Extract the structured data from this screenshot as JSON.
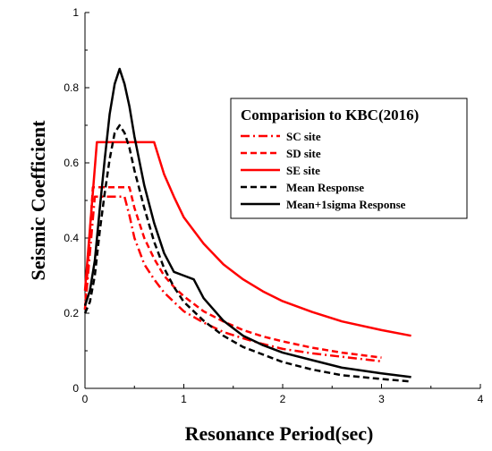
{
  "chart_data": {
    "type": "line",
    "title": "",
    "xlabel": "Resonance Period(sec)",
    "ylabel": "Seismic Coefficient",
    "xlim": [
      0,
      4
    ],
    "ylim": [
      0,
      1
    ],
    "x_ticks": [
      "0",
      "1",
      "2",
      "3",
      "4"
    ],
    "y_ticks": [
      "0",
      "0.2",
      "0.4",
      "0.6",
      "0.8",
      "1"
    ],
    "grid": false,
    "legend": {
      "title": "Comparision to KBC(2016)",
      "placement": "top-right"
    },
    "series": [
      {
        "name": "SC site",
        "color": "#ff0000",
        "style": "dashdot",
        "points": [
          [
            0.0,
            0.21
          ],
          [
            0.1,
            0.51
          ],
          [
            0.4,
            0.51
          ],
          [
            0.45,
            0.46
          ],
          [
            0.5,
            0.4
          ],
          [
            0.6,
            0.33
          ],
          [
            0.7,
            0.29
          ],
          [
            0.8,
            0.255
          ],
          [
            1.0,
            0.205
          ],
          [
            1.2,
            0.175
          ],
          [
            1.4,
            0.15
          ],
          [
            1.6,
            0.133
          ],
          [
            1.8,
            0.118
          ],
          [
            2.0,
            0.105
          ],
          [
            2.3,
            0.093
          ],
          [
            2.6,
            0.084
          ],
          [
            3.0,
            0.072
          ]
        ]
      },
      {
        "name": "SD site",
        "color": "#ff0000",
        "style": "dashed",
        "points": [
          [
            0.0,
            0.21
          ],
          [
            0.08,
            0.535
          ],
          [
            0.45,
            0.535
          ],
          [
            0.5,
            0.48
          ],
          [
            0.6,
            0.4
          ],
          [
            0.7,
            0.345
          ],
          [
            0.8,
            0.3
          ],
          [
            0.9,
            0.27
          ],
          [
            1.0,
            0.245
          ],
          [
            1.2,
            0.205
          ],
          [
            1.4,
            0.178
          ],
          [
            1.6,
            0.155
          ],
          [
            1.8,
            0.138
          ],
          [
            2.0,
            0.125
          ],
          [
            2.3,
            0.108
          ],
          [
            2.6,
            0.095
          ],
          [
            3.0,
            0.082
          ]
        ]
      },
      {
        "name": "SE site",
        "color": "#ff0000",
        "style": "solid",
        "points": [
          [
            0.0,
            0.26
          ],
          [
            0.12,
            0.655
          ],
          [
            0.7,
            0.655
          ],
          [
            0.8,
            0.57
          ],
          [
            0.9,
            0.51
          ],
          [
            1.0,
            0.455
          ],
          [
            1.2,
            0.385
          ],
          [
            1.4,
            0.33
          ],
          [
            1.6,
            0.29
          ],
          [
            1.8,
            0.258
          ],
          [
            2.0,
            0.232
          ],
          [
            2.3,
            0.203
          ],
          [
            2.6,
            0.178
          ],
          [
            3.0,
            0.155
          ],
          [
            3.3,
            0.14
          ]
        ]
      },
      {
        "name": "Mean Response",
        "color": "#000000",
        "style": "dashed",
        "points": [
          [
            0.0,
            0.2
          ],
          [
            0.05,
            0.23
          ],
          [
            0.1,
            0.3
          ],
          [
            0.15,
            0.42
          ],
          [
            0.2,
            0.52
          ],
          [
            0.25,
            0.61
          ],
          [
            0.3,
            0.68
          ],
          [
            0.35,
            0.7
          ],
          [
            0.4,
            0.68
          ],
          [
            0.45,
            0.64
          ],
          [
            0.5,
            0.58
          ],
          [
            0.6,
            0.48
          ],
          [
            0.7,
            0.39
          ],
          [
            0.8,
            0.32
          ],
          [
            0.9,
            0.27
          ],
          [
            1.0,
            0.23
          ],
          [
            1.2,
            0.18
          ],
          [
            1.4,
            0.14
          ],
          [
            1.6,
            0.11
          ],
          [
            1.8,
            0.09
          ],
          [
            2.0,
            0.07
          ],
          [
            2.3,
            0.05
          ],
          [
            2.6,
            0.035
          ],
          [
            3.0,
            0.025
          ],
          [
            3.3,
            0.018
          ]
        ]
      },
      {
        "name": "Mean+1sigma Response",
        "color": "#000000",
        "style": "solid",
        "points": [
          [
            0.0,
            0.22
          ],
          [
            0.05,
            0.26
          ],
          [
            0.1,
            0.34
          ],
          [
            0.15,
            0.48
          ],
          [
            0.2,
            0.61
          ],
          [
            0.25,
            0.73
          ],
          [
            0.3,
            0.81
          ],
          [
            0.35,
            0.85
          ],
          [
            0.4,
            0.81
          ],
          [
            0.45,
            0.75
          ],
          [
            0.5,
            0.67
          ],
          [
            0.6,
            0.54
          ],
          [
            0.7,
            0.44
          ],
          [
            0.8,
            0.36
          ],
          [
            0.9,
            0.31
          ],
          [
            1.0,
            0.3
          ],
          [
            1.1,
            0.29
          ],
          [
            1.2,
            0.24
          ],
          [
            1.4,
            0.18
          ],
          [
            1.6,
            0.14
          ],
          [
            1.8,
            0.115
          ],
          [
            2.0,
            0.095
          ],
          [
            2.3,
            0.075
          ],
          [
            2.6,
            0.055
          ],
          [
            3.0,
            0.04
          ],
          [
            3.3,
            0.03
          ]
        ]
      }
    ]
  }
}
